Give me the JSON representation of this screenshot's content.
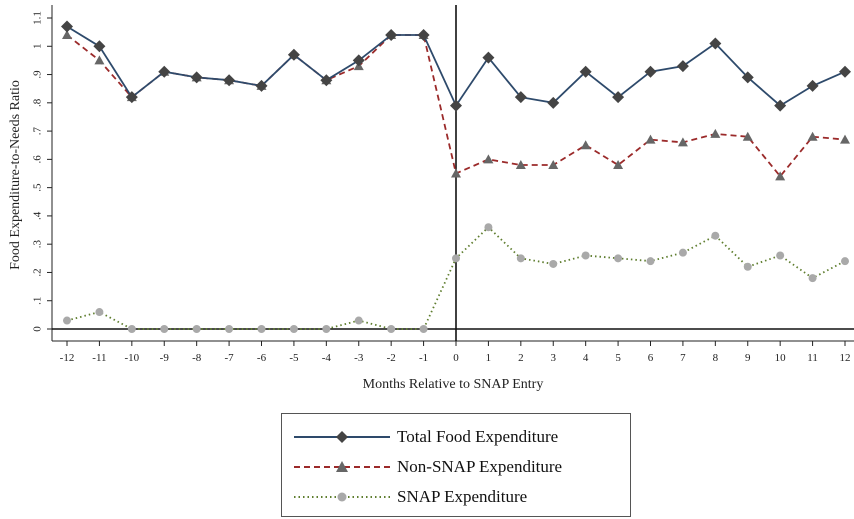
{
  "chart_data": {
    "type": "line",
    "xlabel": "Months Relative to SNAP Entry",
    "ylabel": "Food Expenditure-to-Needs Ratio",
    "x": [
      -12,
      -11,
      -10,
      -9,
      -8,
      -7,
      -6,
      -5,
      -4,
      -3,
      -2,
      -1,
      0,
      1,
      2,
      3,
      4,
      5,
      6,
      7,
      8,
      9,
      10,
      11,
      12
    ],
    "xlim": [
      -12,
      12
    ],
    "ylim": [
      0,
      1.1
    ],
    "yticks": [
      0,
      0.1,
      0.2,
      0.3,
      0.4,
      0.5,
      0.6,
      0.7,
      0.8,
      0.9,
      1.0,
      1.1
    ],
    "ytick_labels": [
      "0",
      ".1",
      ".2",
      ".3",
      ".4",
      ".5",
      ".6",
      ".7",
      ".8",
      ".9",
      "1",
      "1.1"
    ],
    "xtick_labels": [
      "-12",
      "-11",
      "-10",
      "-9",
      "-8",
      "-7",
      "-6",
      "-5",
      "-4",
      "-3",
      "-2",
      "-1",
      "0",
      "1",
      "2",
      "3",
      "4",
      "5",
      "6",
      "7",
      "8",
      "9",
      "10",
      "11",
      "12"
    ],
    "vline_x": 0,
    "grid": false,
    "legend_position": "bottom",
    "series": [
      {
        "name": "Total Food Expenditure",
        "color": "#2e4a6b",
        "style": "solid",
        "marker": "diamond",
        "values": [
          1.07,
          1.0,
          0.82,
          0.91,
          0.89,
          0.88,
          0.86,
          0.97,
          0.88,
          0.95,
          1.04,
          1.04,
          0.79,
          0.96,
          0.82,
          0.8,
          0.91,
          0.82,
          0.91,
          0.93,
          1.01,
          0.89,
          0.79,
          0.86,
          0.91
        ]
      },
      {
        "name": "Non-SNAP Expenditure",
        "color": "#9b2a2a",
        "style": "dashed",
        "marker": "triangle",
        "values": [
          1.04,
          0.95,
          0.82,
          0.91,
          0.89,
          0.88,
          0.86,
          0.97,
          0.88,
          0.93,
          1.04,
          1.04,
          0.55,
          0.6,
          0.58,
          0.58,
          0.65,
          0.58,
          0.67,
          0.66,
          0.69,
          0.68,
          0.54,
          0.68,
          0.67
        ]
      },
      {
        "name": "SNAP Expenditure",
        "color": "#5e7d2e",
        "marker_color": "#a9a9a9",
        "style": "dotted",
        "marker": "circle",
        "values": [
          0.03,
          0.06,
          0.0,
          0.0,
          0.0,
          0.0,
          0.0,
          0.0,
          0.0,
          0.03,
          0.0,
          0.0,
          0.25,
          0.36,
          0.25,
          0.23,
          0.26,
          0.25,
          0.24,
          0.27,
          0.33,
          0.22,
          0.26,
          0.18,
          0.24
        ]
      }
    ]
  }
}
